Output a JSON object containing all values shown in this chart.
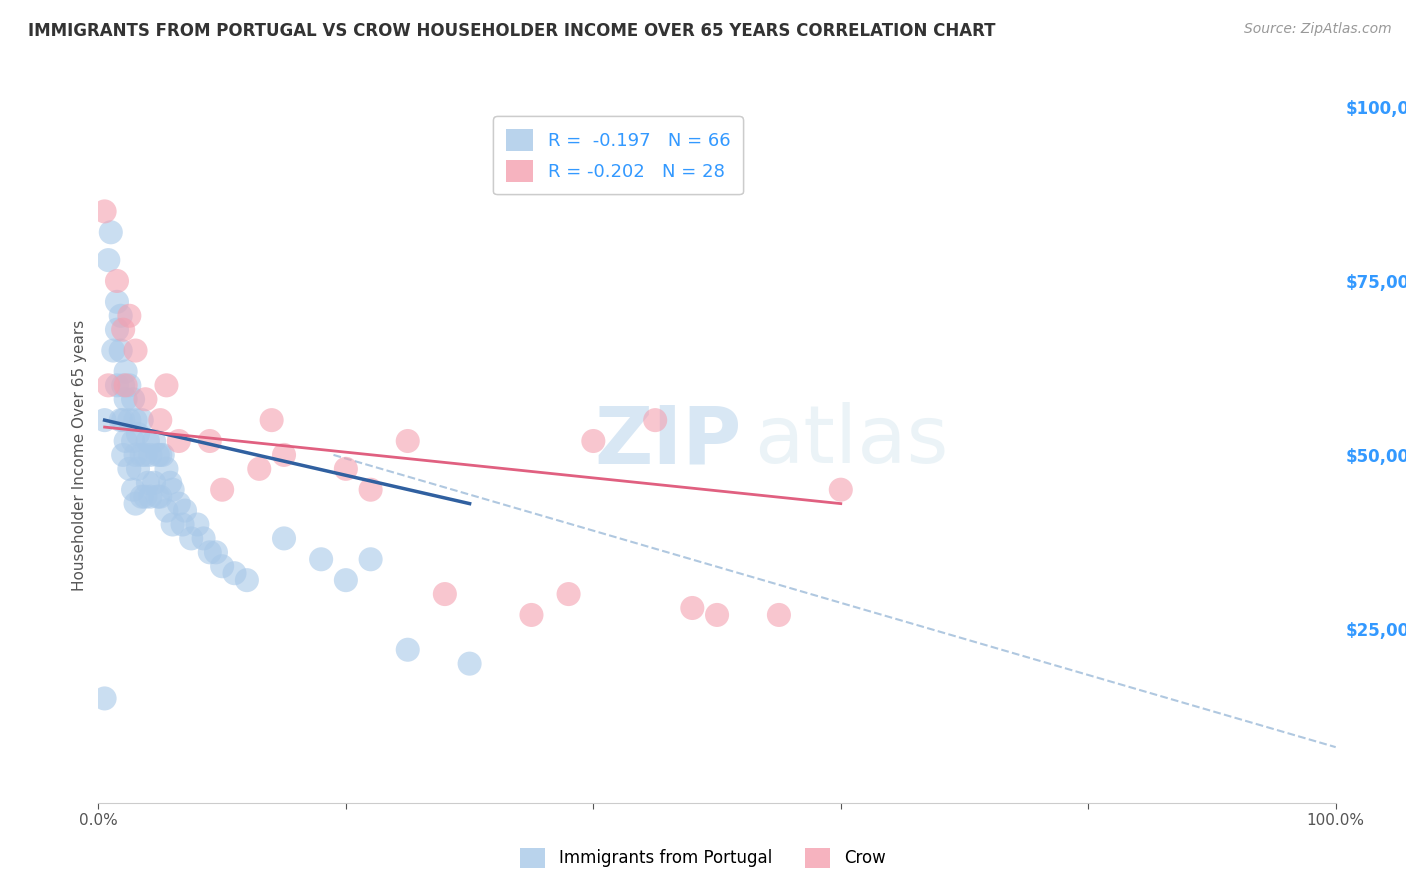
{
  "title": "IMMIGRANTS FROM PORTUGAL VS CROW HOUSEHOLDER INCOME OVER 65 YEARS CORRELATION CHART",
  "source": "Source: ZipAtlas.com",
  "ylabel": "Householder Income Over 65 years",
  "xlim": [
    0,
    1.0
  ],
  "ylim": [
    0,
    100000
  ],
  "xticklabels_left": "0.0%",
  "xticklabels_right": "100.0%",
  "legend_blue_r": "R =  -0.197",
  "legend_blue_n": "N = 66",
  "legend_pink_r": "R = -0.202",
  "legend_pink_n": "N = 28",
  "blue_color": "#a8c8e8",
  "pink_color": "#f4a0b0",
  "blue_line_color": "#3060a0",
  "pink_line_color": "#e06080",
  "dashed_line_color": "#b0c8e0",
  "background_color": "#ffffff",
  "grid_color": "#e0e0e0",
  "title_color": "#333333",
  "axis_label_color": "#555555",
  "right_ytick_color": "#3399ff",
  "watermark_zip": "ZIP",
  "watermark_atlas": "atlas",
  "blue_scatter_x": [
    0.005,
    0.005,
    0.008,
    0.01,
    0.012,
    0.015,
    0.015,
    0.015,
    0.018,
    0.018,
    0.018,
    0.02,
    0.02,
    0.02,
    0.022,
    0.022,
    0.022,
    0.025,
    0.025,
    0.025,
    0.028,
    0.028,
    0.028,
    0.03,
    0.03,
    0.03,
    0.032,
    0.032,
    0.035,
    0.035,
    0.035,
    0.038,
    0.038,
    0.04,
    0.04,
    0.042,
    0.042,
    0.045,
    0.045,
    0.048,
    0.048,
    0.05,
    0.05,
    0.052,
    0.055,
    0.055,
    0.058,
    0.06,
    0.06,
    0.065,
    0.068,
    0.07,
    0.075,
    0.08,
    0.085,
    0.09,
    0.095,
    0.1,
    0.11,
    0.12,
    0.15,
    0.18,
    0.2,
    0.22,
    0.25,
    0.3
  ],
  "blue_scatter_y": [
    15000,
    55000,
    78000,
    82000,
    65000,
    72000,
    68000,
    60000,
    70000,
    65000,
    55000,
    60000,
    55000,
    50000,
    62000,
    58000,
    52000,
    60000,
    55000,
    48000,
    58000,
    52000,
    45000,
    55000,
    50000,
    43000,
    53000,
    48000,
    55000,
    50000,
    44000,
    50000,
    44000,
    52000,
    46000,
    50000,
    44000,
    52000,
    46000,
    50000,
    44000,
    50000,
    44000,
    50000,
    48000,
    42000,
    46000,
    45000,
    40000,
    43000,
    40000,
    42000,
    38000,
    40000,
    38000,
    36000,
    36000,
    34000,
    33000,
    32000,
    38000,
    35000,
    32000,
    35000,
    22000,
    20000
  ],
  "pink_scatter_x": [
    0.005,
    0.008,
    0.015,
    0.02,
    0.022,
    0.025,
    0.03,
    0.038,
    0.05,
    0.055,
    0.065,
    0.09,
    0.1,
    0.13,
    0.14,
    0.15,
    0.2,
    0.22,
    0.25,
    0.28,
    0.35,
    0.38,
    0.4,
    0.45,
    0.48,
    0.5,
    0.55,
    0.6
  ],
  "pink_scatter_y": [
    85000,
    60000,
    75000,
    68000,
    60000,
    70000,
    65000,
    58000,
    55000,
    60000,
    52000,
    52000,
    45000,
    48000,
    55000,
    50000,
    48000,
    45000,
    52000,
    30000,
    27000,
    30000,
    52000,
    55000,
    28000,
    27000,
    27000,
    45000
  ],
  "blue_line_x0": 0.005,
  "blue_line_x1": 0.3,
  "blue_line_y0": 55000,
  "blue_line_y1": 43000,
  "pink_line_x0": 0.005,
  "pink_line_x1": 0.6,
  "pink_line_y0": 54000,
  "pink_line_y1": 43000,
  "dash_line_x0": 0.19,
  "dash_line_x1": 1.0,
  "dash_line_y0": 50000,
  "dash_line_y1": 8000
}
